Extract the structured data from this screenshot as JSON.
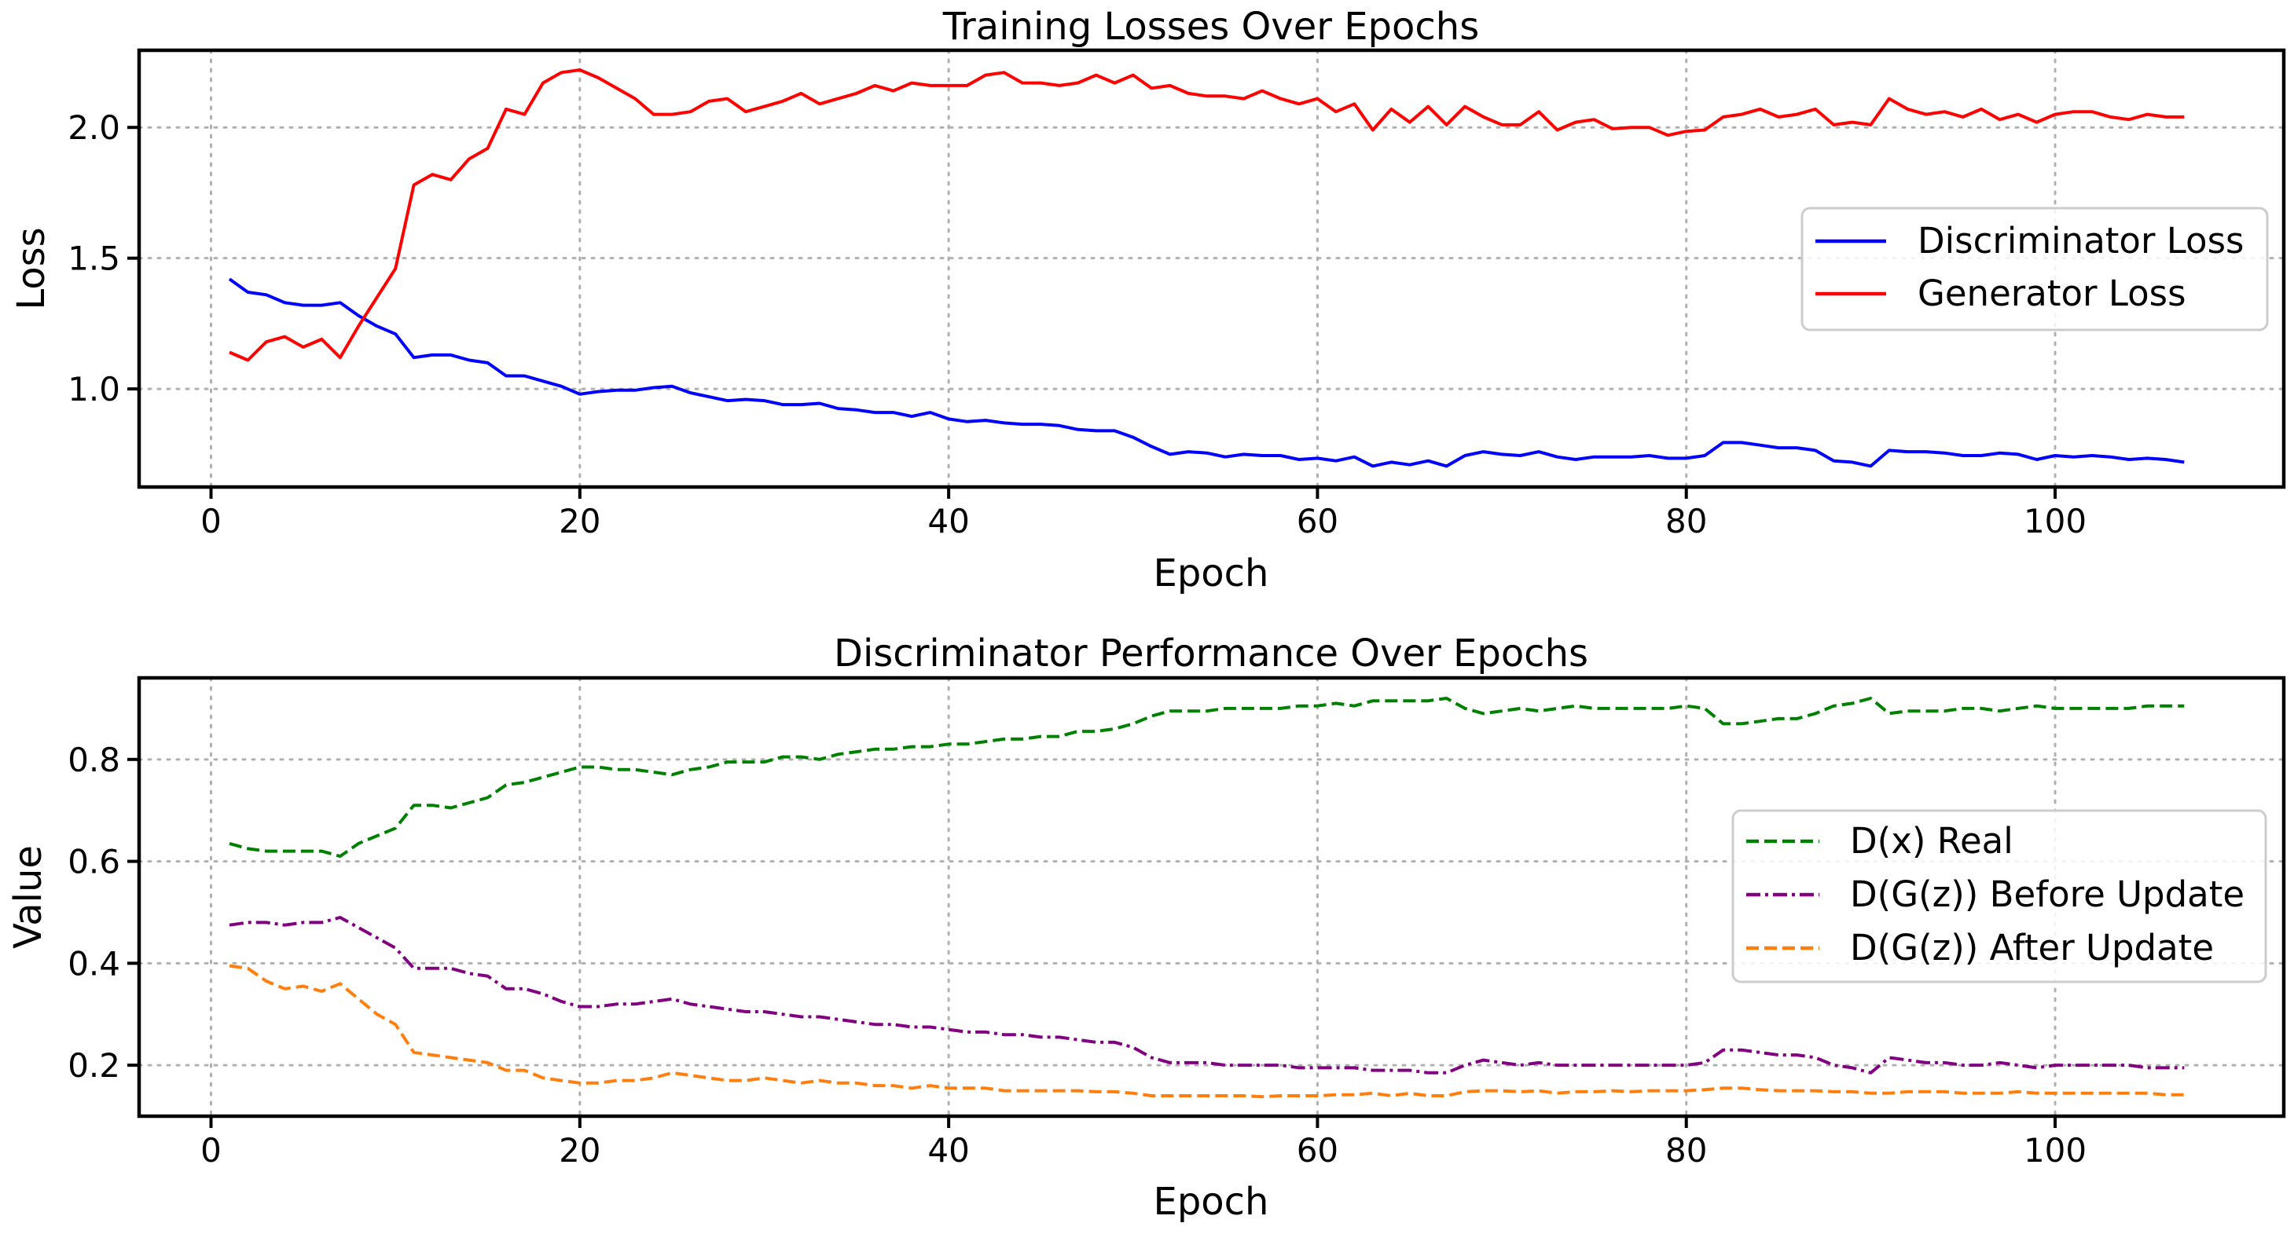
{
  "chart_data": [
    {
      "type": "line",
      "title": "Training Losses Over Epochs",
      "xlabel": "Epoch",
      "ylabel": "Loss",
      "xlim": [
        -3.9,
        112.4
      ],
      "ylim": [
        0.625,
        2.295
      ],
      "xticks": [
        0,
        20,
        40,
        60,
        80,
        100
      ],
      "yticks": [
        1.0,
        1.5,
        2.0
      ],
      "xtick_labels": [
        "0",
        "20",
        "40",
        "60",
        "80",
        "100"
      ],
      "ytick_labels": [
        "1.0",
        "1.5",
        "2.0"
      ],
      "grid": true,
      "legend_position": "center-right",
      "x": [
        1,
        2,
        3,
        4,
        5,
        6,
        7,
        8,
        9,
        10,
        11,
        12,
        13,
        14,
        15,
        16,
        17,
        18,
        19,
        20,
        21,
        22,
        23,
        24,
        25,
        26,
        27,
        28,
        29,
        30,
        31,
        32,
        33,
        34,
        35,
        36,
        37,
        38,
        39,
        40,
        41,
        42,
        43,
        44,
        45,
        46,
        47,
        48,
        49,
        50,
        51,
        52,
        53,
        54,
        55,
        56,
        57,
        58,
        59,
        60,
        61,
        62,
        63,
        64,
        65,
        66,
        67,
        68,
        69,
        70,
        71,
        72,
        73,
        74,
        75,
        76,
        77,
        78,
        79,
        80,
        81,
        82,
        83,
        84,
        85,
        86,
        87,
        88,
        89,
        90,
        91,
        92,
        93,
        94,
        95,
        96,
        97,
        98,
        99,
        100,
        101,
        102,
        103,
        104,
        105,
        106,
        107
      ],
      "series": [
        {
          "name": "Discriminator Loss",
          "color": "#0000ff",
          "dash": "solid",
          "values": [
            1.42,
            1.37,
            1.36,
            1.33,
            1.32,
            1.32,
            1.33,
            1.28,
            1.24,
            1.21,
            1.12,
            1.13,
            1.13,
            1.11,
            1.1,
            1.05,
            1.05,
            1.03,
            1.01,
            0.98,
            0.99,
            0.995,
            0.995,
            1.005,
            1.01,
            0.985,
            0.97,
            0.955,
            0.96,
            0.955,
            0.94,
            0.94,
            0.945,
            0.925,
            0.92,
            0.91,
            0.91,
            0.895,
            0.91,
            0.885,
            0.875,
            0.88,
            0.87,
            0.865,
            0.865,
            0.86,
            0.845,
            0.84,
            0.84,
            0.815,
            0.78,
            0.75,
            0.76,
            0.755,
            0.74,
            0.75,
            0.745,
            0.745,
            0.73,
            0.735,
            0.725,
            0.74,
            0.705,
            0.72,
            0.71,
            0.725,
            0.705,
            0.745,
            0.76,
            0.75,
            0.745,
            0.76,
            0.74,
            0.73,
            0.74,
            0.74,
            0.74,
            0.745,
            0.735,
            0.735,
            0.745,
            0.795,
            0.795,
            0.785,
            0.775,
            0.775,
            0.765,
            0.725,
            0.72,
            0.705,
            0.765,
            0.76,
            0.76,
            0.755,
            0.745,
            0.745,
            0.755,
            0.75,
            0.73,
            0.745,
            0.74,
            0.745,
            0.74,
            0.73,
            0.735,
            0.73,
            0.72
          ]
        },
        {
          "name": "Generator Loss",
          "color": "#ff0000",
          "dash": "solid",
          "values": [
            1.14,
            1.11,
            1.18,
            1.2,
            1.16,
            1.19,
            1.12,
            1.24,
            1.35,
            1.46,
            1.78,
            1.82,
            1.8,
            1.88,
            1.92,
            2.07,
            2.05,
            2.17,
            2.21,
            2.22,
            2.19,
            2.15,
            2.11,
            2.05,
            2.05,
            2.06,
            2.1,
            2.11,
            2.06,
            2.08,
            2.1,
            2.13,
            2.09,
            2.11,
            2.13,
            2.16,
            2.14,
            2.17,
            2.16,
            2.16,
            2.16,
            2.2,
            2.21,
            2.17,
            2.17,
            2.16,
            2.17,
            2.2,
            2.17,
            2.2,
            2.15,
            2.16,
            2.13,
            2.12,
            2.12,
            2.11,
            2.14,
            2.11,
            2.09,
            2.11,
            2.06,
            2.09,
            1.99,
            2.07,
            2.02,
            2.08,
            2.01,
            2.08,
            2.04,
            2.01,
            2.01,
            2.06,
            1.99,
            2.02,
            2.03,
            1.995,
            2.0,
            2.0,
            1.97,
            1.985,
            1.99,
            2.04,
            2.05,
            2.07,
            2.04,
            2.05,
            2.07,
            2.01,
            2.02,
            2.01,
            2.11,
            2.07,
            2.05,
            2.06,
            2.04,
            2.07,
            2.03,
            2.05,
            2.02,
            2.05,
            2.06,
            2.06,
            2.04,
            2.03,
            2.05,
            2.04,
            2.04
          ]
        }
      ]
    },
    {
      "type": "line",
      "title": "Discriminator Performance Over Epochs",
      "xlabel": "Epoch",
      "ylabel": "Value",
      "xlim": [
        -3.9,
        112.4
      ],
      "ylim": [
        0.1,
        0.96
      ],
      "xticks": [
        0,
        20,
        40,
        60,
        80,
        100
      ],
      "yticks": [
        0.2,
        0.4,
        0.6,
        0.8
      ],
      "xtick_labels": [
        "0",
        "20",
        "40",
        "60",
        "80",
        "100"
      ],
      "ytick_labels": [
        "0.2",
        "0.4",
        "0.6",
        "0.8"
      ],
      "grid": true,
      "legend_position": "center-right",
      "x": [
        1,
        2,
        3,
        4,
        5,
        6,
        7,
        8,
        9,
        10,
        11,
        12,
        13,
        14,
        15,
        16,
        17,
        18,
        19,
        20,
        21,
        22,
        23,
        24,
        25,
        26,
        27,
        28,
        29,
        30,
        31,
        32,
        33,
        34,
        35,
        36,
        37,
        38,
        39,
        40,
        41,
        42,
        43,
        44,
        45,
        46,
        47,
        48,
        49,
        50,
        51,
        52,
        53,
        54,
        55,
        56,
        57,
        58,
        59,
        60,
        61,
        62,
        63,
        64,
        65,
        66,
        67,
        68,
        69,
        70,
        71,
        72,
        73,
        74,
        75,
        76,
        77,
        78,
        79,
        80,
        81,
        82,
        83,
        84,
        85,
        86,
        87,
        88,
        89,
        90,
        91,
        92,
        93,
        94,
        95,
        96,
        97,
        98,
        99,
        100,
        101,
        102,
        103,
        104,
        105,
        106,
        107
      ],
      "series": [
        {
          "name": "D(x) Real",
          "color": "#008000",
          "dash": "dashed",
          "values": [
            0.635,
            0.625,
            0.62,
            0.62,
            0.62,
            0.62,
            0.61,
            0.635,
            0.65,
            0.665,
            0.71,
            0.71,
            0.705,
            0.715,
            0.725,
            0.75,
            0.755,
            0.765,
            0.775,
            0.785,
            0.785,
            0.78,
            0.78,
            0.775,
            0.77,
            0.78,
            0.785,
            0.795,
            0.795,
            0.795,
            0.805,
            0.805,
            0.8,
            0.81,
            0.815,
            0.82,
            0.82,
            0.825,
            0.825,
            0.83,
            0.83,
            0.835,
            0.84,
            0.84,
            0.845,
            0.845,
            0.855,
            0.855,
            0.86,
            0.87,
            0.885,
            0.895,
            0.895,
            0.895,
            0.9,
            0.9,
            0.9,
            0.9,
            0.905,
            0.905,
            0.91,
            0.905,
            0.915,
            0.915,
            0.915,
            0.915,
            0.92,
            0.9,
            0.89,
            0.895,
            0.9,
            0.895,
            0.9,
            0.905,
            0.9,
            0.9,
            0.9,
            0.9,
            0.9,
            0.905,
            0.9,
            0.87,
            0.87,
            0.875,
            0.88,
            0.88,
            0.89,
            0.905,
            0.91,
            0.92,
            0.89,
            0.895,
            0.895,
            0.895,
            0.9,
            0.9,
            0.895,
            0.9,
            0.905,
            0.9,
            0.9,
            0.9,
            0.9,
            0.9,
            0.905,
            0.905,
            0.905
          ]
        },
        {
          "name": "D(G(z)) Before Update",
          "color": "#800080",
          "dash": "dashdot",
          "values": [
            0.475,
            0.48,
            0.48,
            0.475,
            0.48,
            0.48,
            0.49,
            0.47,
            0.45,
            0.43,
            0.39,
            0.39,
            0.39,
            0.38,
            0.375,
            0.35,
            0.35,
            0.34,
            0.325,
            0.315,
            0.315,
            0.32,
            0.32,
            0.325,
            0.33,
            0.32,
            0.315,
            0.31,
            0.305,
            0.305,
            0.3,
            0.295,
            0.295,
            0.29,
            0.285,
            0.28,
            0.28,
            0.275,
            0.275,
            0.27,
            0.265,
            0.265,
            0.26,
            0.26,
            0.255,
            0.255,
            0.25,
            0.245,
            0.245,
            0.235,
            0.215,
            0.205,
            0.205,
            0.205,
            0.2,
            0.2,
            0.2,
            0.2,
            0.195,
            0.195,
            0.195,
            0.195,
            0.19,
            0.19,
            0.19,
            0.185,
            0.185,
            0.2,
            0.21,
            0.205,
            0.2,
            0.205,
            0.2,
            0.2,
            0.2,
            0.2,
            0.2,
            0.2,
            0.2,
            0.2,
            0.205,
            0.23,
            0.23,
            0.225,
            0.22,
            0.22,
            0.215,
            0.2,
            0.195,
            0.185,
            0.215,
            0.21,
            0.205,
            0.205,
            0.2,
            0.2,
            0.205,
            0.2,
            0.195,
            0.2,
            0.2,
            0.2,
            0.2,
            0.2,
            0.195,
            0.195,
            0.195
          ]
        },
        {
          "name": "D(G(z)) After Update",
          "color": "#ff7f0e",
          "dash": "dashed",
          "values": [
            0.395,
            0.39,
            0.365,
            0.35,
            0.355,
            0.345,
            0.36,
            0.33,
            0.3,
            0.28,
            0.225,
            0.22,
            0.215,
            0.21,
            0.205,
            0.19,
            0.19,
            0.175,
            0.17,
            0.165,
            0.165,
            0.17,
            0.17,
            0.175,
            0.185,
            0.18,
            0.175,
            0.17,
            0.17,
            0.175,
            0.17,
            0.165,
            0.17,
            0.165,
            0.165,
            0.16,
            0.16,
            0.155,
            0.16,
            0.155,
            0.155,
            0.155,
            0.15,
            0.15,
            0.15,
            0.15,
            0.15,
            0.148,
            0.148,
            0.145,
            0.14,
            0.14,
            0.14,
            0.14,
            0.14,
            0.14,
            0.138,
            0.14,
            0.14,
            0.14,
            0.142,
            0.142,
            0.145,
            0.14,
            0.145,
            0.14,
            0.14,
            0.148,
            0.15,
            0.15,
            0.148,
            0.15,
            0.145,
            0.148,
            0.148,
            0.15,
            0.148,
            0.15,
            0.15,
            0.15,
            0.152,
            0.155,
            0.155,
            0.152,
            0.15,
            0.15,
            0.15,
            0.148,
            0.148,
            0.145,
            0.145,
            0.148,
            0.148,
            0.148,
            0.145,
            0.145,
            0.145,
            0.148,
            0.145,
            0.145,
            0.145,
            0.145,
            0.145,
            0.145,
            0.145,
            0.142,
            0.142
          ]
        }
      ]
    }
  ]
}
